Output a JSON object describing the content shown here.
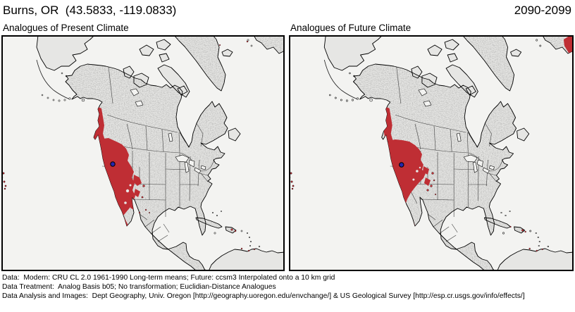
{
  "header": {
    "location": "Burns, OR  (43.5833, -119.0833)",
    "period": "2090-2099"
  },
  "maps": [
    {
      "id": "present",
      "title": "Analogues of Present Climate"
    },
    {
      "id": "future",
      "title": "Analogues of Future Climate"
    }
  ],
  "marker": {
    "description": "Burns, OR reference location dot",
    "color": "#2626ad"
  },
  "colors": {
    "analog_red": "#bf2e34",
    "marker_blue": "#2626ad",
    "land": "#e6e6e4",
    "ocean": "#f3f3f1",
    "coast": "#000000",
    "interior_border": "#3d3d3d",
    "frame": "#000000"
  },
  "footer": {
    "lines": [
      "Data:  Modern: CRU CL 2.0 1961-1990 Long-term means; Future: ccsm3 Interpolated onto a 10 km grid",
      "Data Treatment:  Analog Basis b05; No transformation; Euclidian-Distance Analogues",
      "Data Analysis and Images:  Dept Geography, Univ. Oregon [http://geography.uoregon.edu/envchange/] & US Geological Survey [http://esp.cr.usgs.gov/info/effects/]"
    ]
  }
}
